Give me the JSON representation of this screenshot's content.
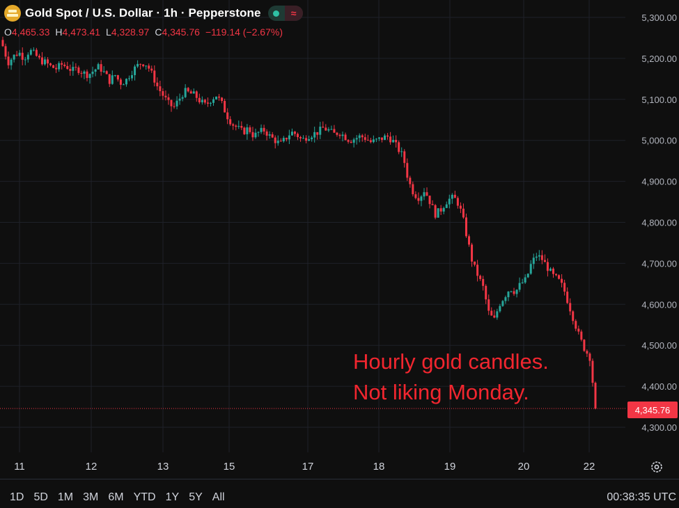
{
  "header": {
    "title": "Gold Spot / U.S. Dollar · 1h · Pepperstone",
    "o_label": "O",
    "o_value": "4,465.33",
    "h_label": "H",
    "h_value": "4,473.41",
    "l_label": "L",
    "l_value": "4,328.97",
    "c_label": "C",
    "c_value": "4,345.76",
    "change": "−119.14 (−2.67%)"
  },
  "annotation": {
    "line1": "Hourly gold candles.",
    "line2": "Not liking Monday."
  },
  "last_price": "4,345.76",
  "range_buttons": [
    "1D",
    "5D",
    "1M",
    "3M",
    "6M",
    "YTD",
    "1Y",
    "5Y",
    "All"
  ],
  "clock": "00:38:35 UTC",
  "colors": {
    "up": "#26a69a",
    "down": "#f23645",
    "background": "#0f0f0f",
    "grid": "#1f2129"
  },
  "chart_data": {
    "type": "candlestick",
    "interval": "1h",
    "ylim": [
      4270,
      5330
    ],
    "y_ticks": [
      5300,
      5200,
      5100,
      5000,
      4900,
      4800,
      4700,
      4600,
      4500,
      4400,
      4300
    ],
    "y_tick_labels": [
      "5,300.00",
      "5,200.00",
      "5,100.00",
      "5,000.00",
      "4,900.00",
      "4,800.00",
      "4,700.00",
      "4,600.00",
      "4,500.00",
      "4,400.00",
      "4,300.00"
    ],
    "x_ticks": [
      "11",
      "12",
      "13",
      "15",
      "17",
      "18",
      "19",
      "20",
      "22"
    ],
    "last_close": 4345.76,
    "close_path": [
      5230,
      5190,
      5205,
      5215,
      5200,
      5220,
      5210,
      5195,
      5190,
      5180,
      5175,
      5185,
      5180,
      5170,
      5175,
      5165,
      5160,
      5170,
      5180,
      5165,
      5145,
      5160,
      5140,
      5145,
      5165,
      5180,
      5190,
      5185,
      5160,
      5130,
      5110,
      5090,
      5080,
      5100,
      5120,
      5115,
      5110,
      5095,
      5085,
      5100,
      5110,
      5090,
      5060,
      5040,
      5030,
      5020,
      5030,
      5010,
      5020,
      5025,
      5010,
      5000,
      4990,
      5005,
      5020,
      5015,
      5000,
      5010,
      5015,
      5020,
      5030,
      5025,
      5015,
      5020,
      5010,
      5000,
      5005,
      5010,
      5005,
      4995,
      5000,
      5005,
      5010,
      5000,
      4980,
      4960,
      4900,
      4870,
      4860,
      4880,
      4850,
      4820,
      4830,
      4850,
      4860,
      4855,
      4820,
      4760,
      4700,
      4670,
      4640,
      4580,
      4560,
      4600,
      4620,
      4640,
      4630,
      4650,
      4660,
      4700,
      4720,
      4710,
      4690,
      4670,
      4660,
      4640,
      4600,
      4560,
      4520,
      4490,
      4470,
      4345.76
    ]
  }
}
